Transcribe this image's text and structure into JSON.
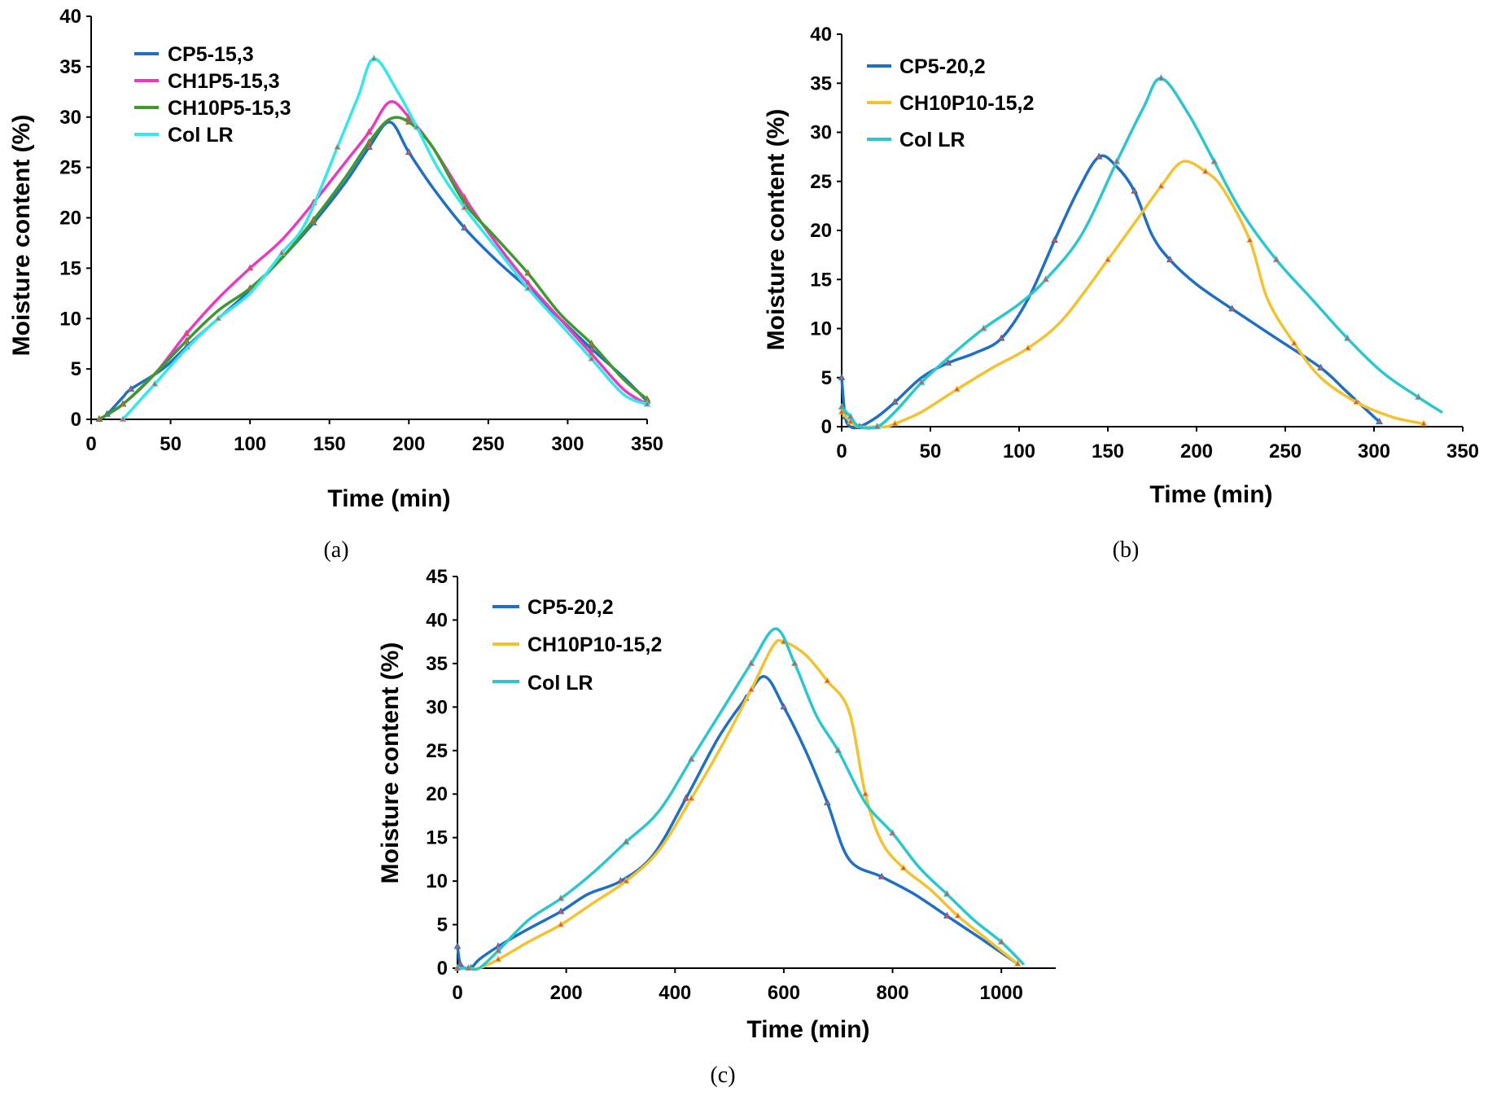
{
  "chart_data": [
    {
      "type": "line",
      "caption": "(a)",
      "xlabel": "Time (min)",
      "ylabel": "Moisture content (%)",
      "xlim": [
        0,
        350
      ],
      "ylim": [
        0,
        40
      ],
      "xticks": [
        0,
        50,
        100,
        150,
        200,
        250,
        300,
        350
      ],
      "yticks": [
        0,
        5,
        10,
        15,
        20,
        25,
        30,
        35,
        40
      ],
      "grid": false,
      "legend_position": "top-left",
      "series": [
        {
          "name": "CP5-15,3",
          "color": "#1f6fc4",
          "x": [
            5,
            10,
            20,
            25,
            45,
            60,
            80,
            100,
            120,
            140,
            160,
            175,
            188,
            200,
            215,
            235,
            255,
            275,
            295,
            315,
            335,
            350
          ],
          "y": [
            0,
            0.5,
            2.2,
            3,
            5,
            7.2,
            10,
            12.8,
            16,
            19.5,
            23.5,
            27,
            29.5,
            26.5,
            23,
            19,
            15.8,
            13,
            10,
            7,
            4.2,
            1.8
          ]
        },
        {
          "name": "CH1P5-15,3",
          "color": "#e83bbf",
          "x": [
            5,
            20,
            40,
            60,
            80,
            100,
            120,
            140,
            160,
            175,
            188,
            200,
            215,
            235,
            255,
            275,
            295,
            315,
            335,
            350
          ],
          "y": [
            0,
            1.5,
            4.5,
            8.5,
            12,
            15,
            17.8,
            21.5,
            25.5,
            28.5,
            31.5,
            30,
            27,
            22,
            17.5,
            13.5,
            10,
            6.5,
            3,
            1.5
          ]
        },
        {
          "name": "CH10P5-15,3",
          "color": "#3f9a2e",
          "x": [
            5,
            20,
            40,
            60,
            80,
            100,
            120,
            140,
            160,
            175,
            188,
            200,
            215,
            235,
            255,
            275,
            295,
            315,
            335,
            350
          ],
          "y": [
            0,
            1.5,
            4.5,
            7.8,
            10.8,
            13,
            16,
            19.8,
            24,
            27.5,
            29.8,
            29.5,
            27,
            21.5,
            18,
            14.5,
            10.5,
            7.5,
            4,
            2
          ]
        },
        {
          "name": "Col LR",
          "color": "#33e8e8",
          "x": [
            20,
            40,
            60,
            80,
            100,
            120,
            135,
            155,
            168,
            178,
            193,
            205,
            218,
            235,
            255,
            275,
            295,
            315,
            335,
            350
          ],
          "y": [
            0,
            3.5,
            7,
            10,
            12.5,
            16.5,
            19.5,
            27,
            32,
            35.8,
            32.5,
            29,
            25,
            21,
            17,
            13,
            9.5,
            6,
            2.5,
            1.5
          ]
        }
      ]
    },
    {
      "type": "line",
      "caption": "(b)",
      "xlabel": "Time (min)",
      "ylabel": "Moisture content (%)",
      "xlim": [
        0,
        350
      ],
      "ylim": [
        0,
        40
      ],
      "xticks": [
        0,
        50,
        100,
        150,
        200,
        250,
        300,
        350
      ],
      "yticks": [
        0,
        5,
        10,
        15,
        20,
        25,
        30,
        35,
        40
      ],
      "grid": false,
      "legend_position": "top-left",
      "series": [
        {
          "name": "CP5-20,2",
          "color": "#1f6fc4",
          "x": [
            0,
            2,
            5,
            10,
            20,
            30,
            45,
            60,
            75,
            90,
            105,
            120,
            133,
            145,
            155,
            165,
            175,
            185,
            200,
            220,
            245,
            270,
            285,
            303
          ],
          "y": [
            5,
            1,
            0,
            0,
            1,
            2.5,
            5,
            6.5,
            7.5,
            9,
            13,
            19,
            24,
            27.5,
            26.5,
            24,
            19.5,
            17,
            14.5,
            12,
            9,
            6,
            3.5,
            0.5
          ]
        },
        {
          "name": "CH10P10-15,2",
          "color": "#f2c32e",
          "x": [
            0,
            5,
            10,
            20,
            25,
            30,
            45,
            65,
            85,
            105,
            125,
            150,
            170,
            180,
            192,
            205,
            215,
            230,
            240,
            255,
            270,
            290,
            310,
            328
          ],
          "y": [
            1.5,
            0.5,
            0,
            0,
            0,
            0.3,
            1.5,
            3.8,
            6,
            8,
            11,
            17,
            22,
            24.5,
            27,
            26,
            24.2,
            19,
            13,
            8.5,
            5,
            2.5,
            1,
            0.3
          ]
        },
        {
          "name": "Col LR",
          "color": "#2cc6cf",
          "x": [
            0,
            5,
            10,
            20,
            30,
            45,
            60,
            80,
            100,
            115,
            135,
            155,
            170,
            180,
            195,
            210,
            225,
            245,
            265,
            285,
            305,
            325,
            338
          ],
          "y": [
            2,
            1,
            0,
            0,
            1.5,
            4.5,
            7,
            10,
            12.5,
            15,
            19.5,
            27,
            32.5,
            35.5,
            32,
            27,
            22,
            17,
            13,
            9,
            5.5,
            3,
            1.5
          ]
        }
      ]
    },
    {
      "type": "line",
      "caption": "(c)",
      "xlabel": "Time (min)",
      "ylabel": "Moisture content (%)",
      "xlim": [
        0,
        1100
      ],
      "ylim": [
        0,
        45
      ],
      "xticks": [
        0,
        200,
        400,
        600,
        800,
        1000
      ],
      "yticks": [
        0,
        5,
        10,
        15,
        20,
        25,
        30,
        35,
        40,
        45
      ],
      "grid": false,
      "legend_position": "top-left",
      "series": [
        {
          "name": "CP5-20,2",
          "color": "#1f6fc4",
          "x": [
            0,
            5,
            15,
            25,
            40,
            75,
            130,
            190,
            240,
            300,
            360,
            420,
            480,
            530,
            565,
            600,
            640,
            680,
            720,
            780,
            840,
            900,
            960,
            1030
          ],
          "y": [
            2.5,
            0.5,
            0,
            0,
            1,
            2.5,
            4.5,
            6.5,
            8.5,
            10,
            13,
            19.5,
            26.5,
            31,
            33.5,
            30,
            25,
            19,
            12.5,
            10.5,
            8.5,
            6,
            3.5,
            0.5
          ]
        },
        {
          "name": "CH10P10-15,2",
          "color": "#f2c32e",
          "x": [
            0,
            20,
            40,
            75,
            130,
            190,
            250,
            310,
            370,
            430,
            490,
            540,
            580,
            600,
            640,
            680,
            720,
            750,
            780,
            820,
            870,
            920,
            970,
            1030
          ],
          "y": [
            0,
            0,
            0,
            1,
            3,
            5,
            7.5,
            10,
            13.5,
            19.5,
            26,
            32,
            37,
            37.5,
            36,
            33,
            29.5,
            20,
            14.5,
            11.5,
            9,
            6,
            3.5,
            0.5
          ]
        },
        {
          "name": "Col LR",
          "color": "#2cc6cf",
          "x": [
            0,
            20,
            40,
            75,
            130,
            190,
            250,
            310,
            370,
            430,
            490,
            540,
            585,
            620,
            660,
            700,
            750,
            800,
            850,
            900,
            950,
            1000,
            1040
          ],
          "y": [
            0,
            0,
            0,
            2,
            5.5,
            8,
            11,
            14.5,
            18,
            24,
            30,
            35,
            39,
            35,
            29,
            25,
            19,
            15.5,
            11.5,
            8.5,
            5.5,
            3,
            0.5
          ]
        }
      ]
    }
  ]
}
